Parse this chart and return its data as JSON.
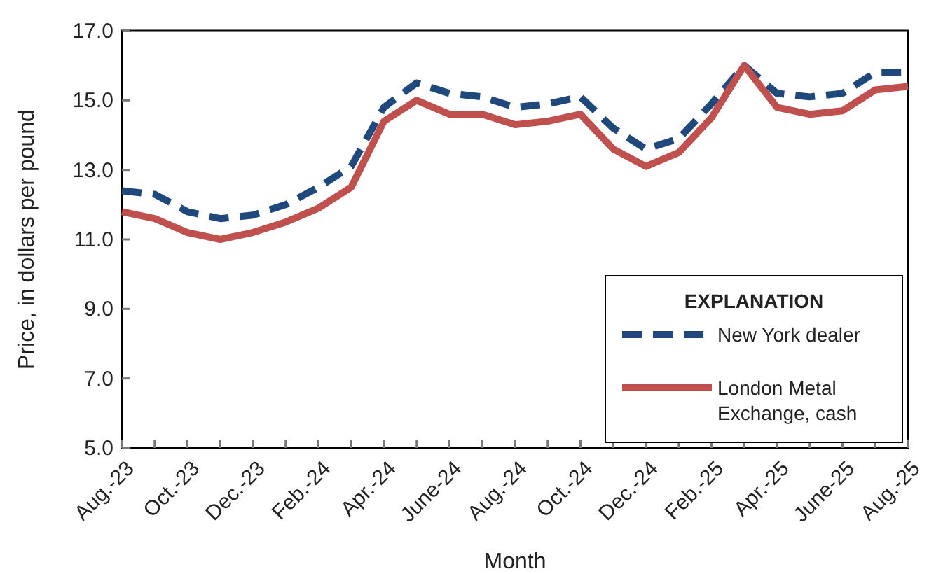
{
  "chart_data": {
    "type": "line",
    "xlabel": "Month",
    "ylabel": "Price, in dollars per pound",
    "legend_title": "EXPLANATION",
    "legend": "bottom right",
    "grid": false,
    "categories": [
      "Aug.-23",
      null,
      "Oct.-23",
      null,
      "Dec.-23",
      null,
      "Feb.-24",
      null,
      "Apr.-24",
      null,
      "June-24",
      null,
      "Aug.-24",
      null,
      "Oct.-24",
      null,
      "Dec.-24",
      null,
      "Feb.-25",
      null,
      "Apr.-25",
      null,
      "June-25",
      null,
      "Aug.-25"
    ],
    "ylim": [
      5,
      17
    ],
    "yticks": [
      {
        "value": 5,
        "label": "5.0"
      },
      {
        "value": 7,
        "label": "7.0"
      },
      {
        "value": 9,
        "label": "9.0"
      },
      {
        "value": 11,
        "label": "11.0"
      },
      {
        "value": 13,
        "label": "13.0"
      },
      {
        "value": 15,
        "label": "15.0"
      },
      {
        "value": 17,
        "label": "17.0"
      }
    ],
    "series": [
      {
        "name": "New York dealer",
        "color": "#1f497d",
        "line_style": "dashed",
        "values": [
          12.4,
          12.3,
          11.8,
          11.6,
          11.7,
          12.0,
          12.5,
          13.1,
          14.8,
          15.5,
          15.2,
          15.1,
          14.8,
          14.9,
          15.1,
          14.2,
          13.6,
          13.9,
          14.9,
          16.0,
          15.2,
          15.1,
          15.2,
          15.8,
          15.8
        ]
      },
      {
        "name": "London Metal Exchange, cash",
        "color": "#c0504d",
        "line_style": "solid",
        "values": [
          11.8,
          11.6,
          11.2,
          11.0,
          11.2,
          11.5,
          11.9,
          12.5,
          14.4,
          15.0,
          14.6,
          14.6,
          14.3,
          14.4,
          14.6,
          13.6,
          13.1,
          13.5,
          14.5,
          16.0,
          14.8,
          14.6,
          14.7,
          15.3,
          15.4
        ]
      }
    ]
  }
}
